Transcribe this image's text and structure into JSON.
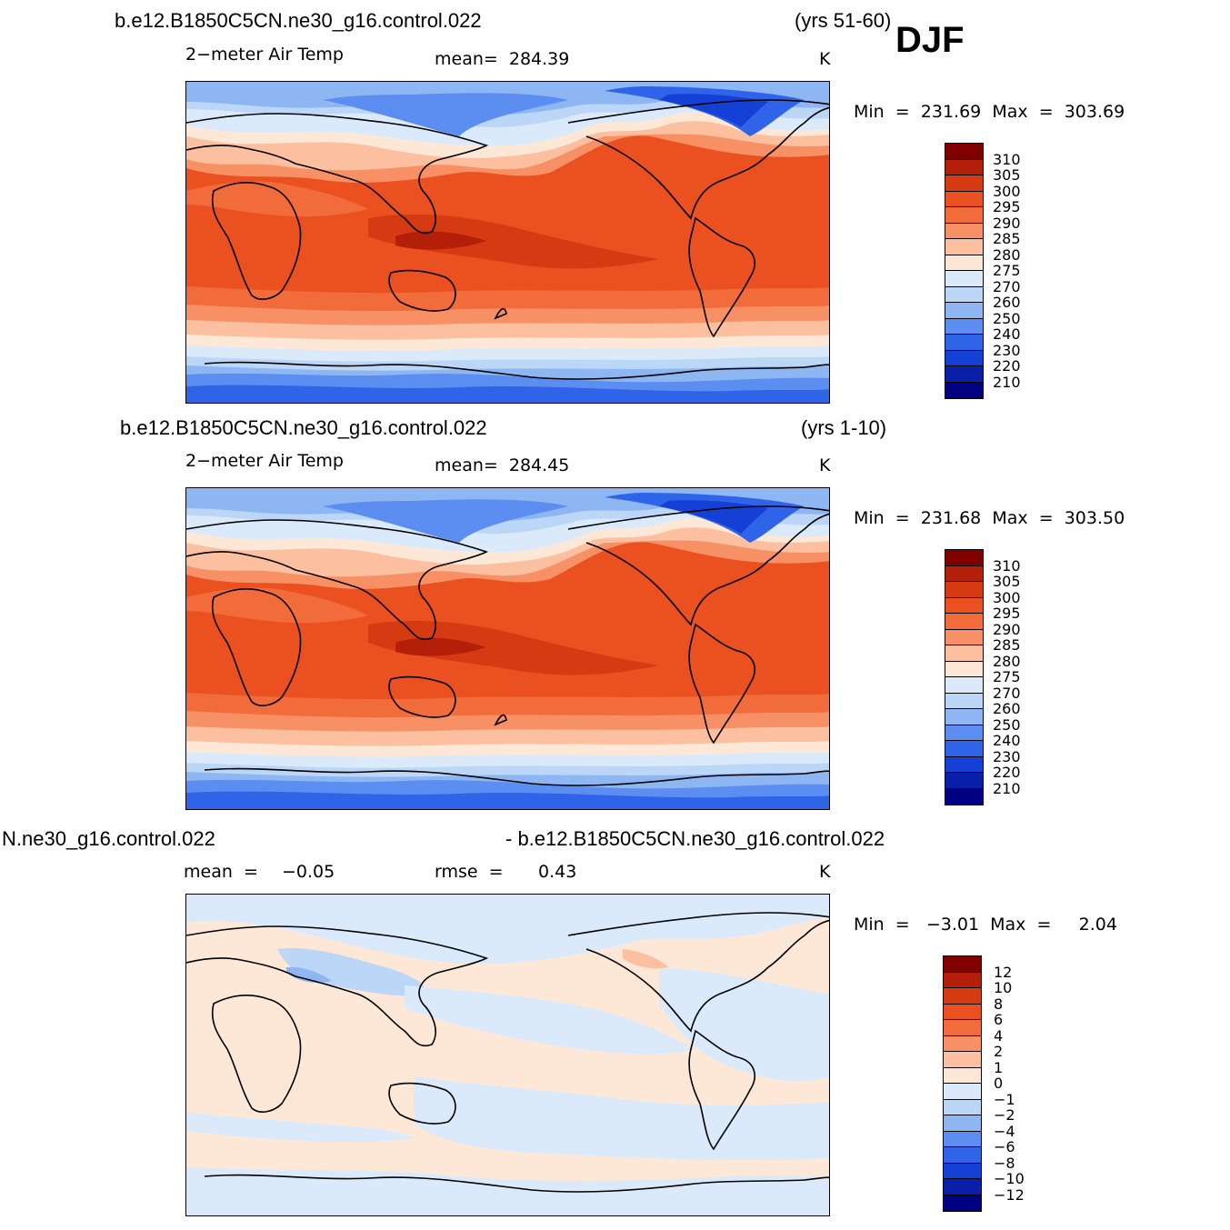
{
  "season": "DJF",
  "panels": [
    {
      "case": "b.e12.B1850C5CN.ne30_g16.control.022",
      "years": "(yrs 51-60)",
      "variable": "2−meter Air Temp",
      "stat_text": "mean=  284.39",
      "units": "K",
      "minmax": "Min  =  231.69  Max  =  303.69",
      "colorbar_levels": [
        "310",
        "305",
        "300",
        "295",
        "290",
        "285",
        "280",
        "275",
        "270",
        "260",
        "250",
        "240",
        "230",
        "220",
        "210"
      ]
    },
    {
      "case": "b.e12.B1850C5CN.ne30_g16.control.022",
      "years": "(yrs 1-10)",
      "variable": "2−meter Air Temp",
      "stat_text": "mean=  284.45",
      "units": "K",
      "minmax": "Min  =  231.68  Max  =  303.50",
      "colorbar_levels": [
        "310",
        "305",
        "300",
        "295",
        "290",
        "285",
        "280",
        "275",
        "270",
        "260",
        "250",
        "240",
        "230",
        "220",
        "210"
      ]
    },
    {
      "case_left": "N.ne30_g16.control.022",
      "case_right": "- b.e12.B1850C5CN.ne30_g16.control.022",
      "mean_label": "mean  =",
      "mean_value": "−0.05",
      "rmse_label": "rmse  =",
      "rmse_value": "0.43",
      "units": "K",
      "minmax": "Min  =   −3.01  Max  =     2.04",
      "colorbar_levels": [
        "12",
        "10",
        "8",
        "6",
        "4",
        "2",
        "1",
        "0",
        "−1",
        "−2",
        "−4",
        "−6",
        "−8",
        "−10",
        "−12"
      ]
    }
  ],
  "colors": {
    "temp_scale": [
      "#800000",
      "#b41f0a",
      "#d63a12",
      "#ea5020",
      "#f26b3a",
      "#f79065",
      "#fcbf9f",
      "#fde8d8",
      "#dbeafb",
      "#bcd6f8",
      "#8db6f3",
      "#5b8ef0",
      "#2f63e8",
      "#1440d6",
      "#0a1fa8",
      "#000080"
    ],
    "diff_scale": [
      "#800000",
      "#b41f0a",
      "#d63a12",
      "#ea5020",
      "#f26b3a",
      "#f79065",
      "#fcbf9f",
      "#fde8d8",
      "#dbeafb",
      "#bcd6f8",
      "#8db6f3",
      "#5b8ef0",
      "#2f63e8",
      "#1440d6",
      "#0a1fa8",
      "#000080"
    ]
  }
}
